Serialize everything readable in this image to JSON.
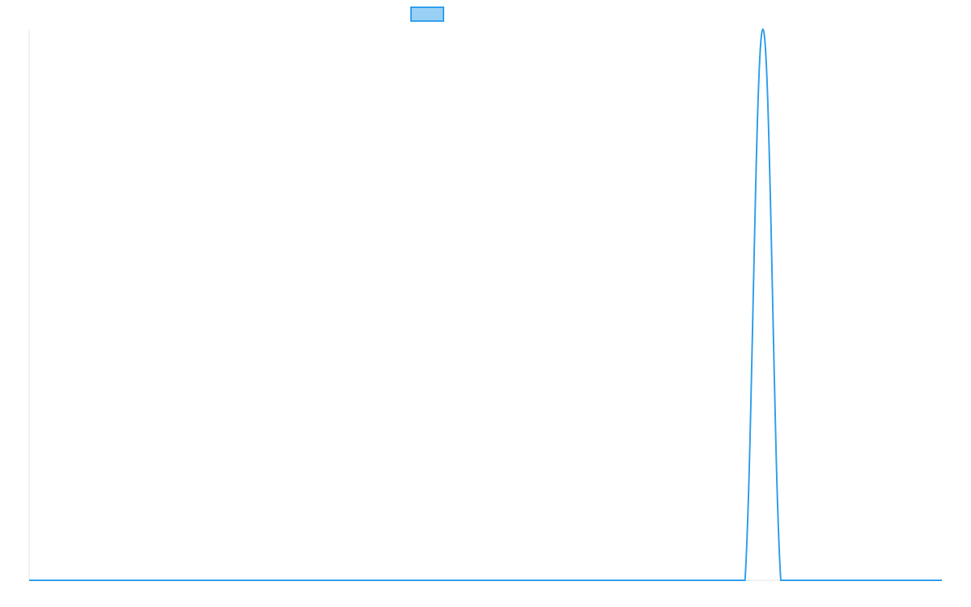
{
  "chart_data": {
    "type": "line",
    "title": "",
    "xlabel": "",
    "ylabel": "",
    "x": [
      0,
      1,
      2,
      3,
      4,
      5,
      6,
      7,
      8,
      9,
      10,
      11,
      12,
      13,
      14,
      15,
      16,
      17,
      18,
      19,
      20,
      21,
      22,
      23,
      24,
      25,
      26,
      27,
      28,
      29,
      30,
      31,
      32,
      33,
      34,
      35,
      36,
      37,
      38,
      39,
      40,
      41,
      42,
      43,
      44,
      45,
      46,
      47,
      48,
      49,
      50,
      51
    ],
    "series": [
      {
        "name": "",
        "values": [
          0,
          0,
          0,
          0,
          0,
          0,
          0,
          0,
          0,
          0,
          0,
          0,
          0,
          0,
          0,
          0,
          0,
          0,
          0,
          0,
          0,
          0,
          0,
          0,
          0,
          0,
          0,
          0,
          0,
          0,
          0,
          0,
          0,
          0,
          0,
          0,
          0,
          0,
          0,
          0,
          0,
          1,
          0,
          0,
          0,
          0,
          0,
          0,
          0,
          0,
          0,
          0
        ]
      }
    ],
    "xlim": [
      0,
      51
    ],
    "ylim": [
      0,
      1
    ],
    "grid": false,
    "legend": "top",
    "colors": {
      "line": "#36a2eb",
      "legend_fill": "#9ad0f5",
      "axis": "#e6e6e6"
    }
  }
}
